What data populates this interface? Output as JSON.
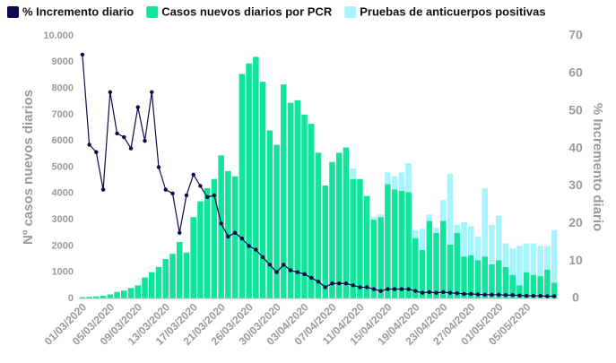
{
  "chart_data": {
    "type": "bar",
    "y_label": "Nº casos nuevos diarios",
    "y2_label": "% Incremento diario",
    "stacked": true,
    "categories": [
      "01/03/2020",
      null,
      null,
      null,
      "05/03/2020",
      null,
      null,
      null,
      "09/03/2020",
      null,
      null,
      null,
      "13/03/2020",
      null,
      null,
      null,
      "17/03/2020",
      null,
      null,
      null,
      "21/03/2020",
      null,
      null,
      null,
      "26/03/2020",
      null,
      null,
      null,
      "30/03/2020",
      null,
      null,
      null,
      "03/04/2020",
      null,
      null,
      null,
      "07/04/2020",
      null,
      null,
      null,
      "11/04/2020",
      null,
      null,
      null,
      "15/04/2020",
      null,
      null,
      null,
      "19/04/2020",
      null,
      null,
      null,
      "23/04/2020",
      null,
      null,
      null,
      "27/04/2020",
      null,
      null,
      null,
      "01/05/2020",
      null,
      null,
      null,
      "05/05/2020",
      null,
      null,
      null,
      null
    ],
    "series": [
      {
        "name": "% Incremento diario",
        "type": "line",
        "axis": "y2",
        "color": "#0c0a4d",
        "values": [
          65,
          41,
          39,
          29,
          55,
          44,
          43,
          40,
          51,
          42,
          55,
          35,
          29,
          28,
          17.5,
          27.5,
          33,
          30,
          27,
          27.5,
          20,
          16.5,
          17.5,
          16,
          14,
          13,
          11,
          9,
          7,
          9,
          7.5,
          7,
          6.5,
          5.5,
          4.5,
          3,
          4,
          4,
          4,
          3.5,
          3,
          3,
          2.5,
          2,
          2.5,
          2.5,
          2.5,
          2.5,
          2,
          1.5,
          1.7,
          1.5,
          1.7,
          1.5,
          1.4,
          1.2,
          1.2,
          1.1,
          1,
          1,
          1,
          0.9,
          0.9,
          0.8,
          0.7,
          0.7,
          0.7,
          0.6,
          0.6
        ]
      },
      {
        "name": "Casos nuevos diarios por PCR",
        "type": "bar",
        "color": "#12e49e",
        "values": [
          50,
          60,
          80,
          100,
          150,
          250,
          300,
          400,
          500,
          800,
          1000,
          1200,
          1500,
          1700,
          2150,
          1750,
          3100,
          3700,
          4200,
          4550,
          5450,
          4850,
          4650,
          8550,
          8950,
          9200,
          8250,
          6400,
          5850,
          8150,
          7450,
          7550,
          7000,
          6650,
          5550,
          4300,
          5200,
          5550,
          5750,
          4550,
          4550,
          3900,
          3000,
          3100,
          4350,
          4150,
          4100,
          4050,
          2300,
          1850,
          2950,
          2500,
          2950,
          2050,
          2500,
          1600,
          1650,
          1450,
          1600,
          1300,
          1450,
          1200,
          900,
          500,
          1000,
          900,
          850,
          1100,
          600
        ]
      },
      {
        "name": "Pruebas de anticuerpos positivas",
        "type": "bar",
        "color": "#a6f4fd",
        "values": [
          0,
          0,
          0,
          0,
          0,
          0,
          0,
          0,
          0,
          0,
          0,
          0,
          0,
          0,
          0,
          0,
          0,
          0,
          0,
          0,
          0,
          0,
          0,
          0,
          0,
          0,
          0,
          0,
          0,
          0,
          0,
          0,
          0,
          0,
          0,
          0,
          0,
          0,
          0,
          400,
          0,
          0,
          100,
          100,
          450,
          500,
          700,
          1100,
          300,
          800,
          250,
          200,
          800,
          2700,
          300,
          1300,
          1100,
          900,
          2600,
          1500,
          1700,
          900,
          1000,
          1500,
          1100,
          1200,
          1150,
          900,
          2000
        ]
      }
    ],
    "ylim": [
      0,
      10000
    ],
    "yticks": [
      0,
      1000,
      2000,
      3000,
      4000,
      5000,
      6000,
      7000,
      8000,
      9000,
      {
        "value": 10000,
        "label": "10.000"
      }
    ],
    "y2lim": [
      0,
      70
    ],
    "y2ticks": [
      0,
      10,
      20,
      30,
      40,
      50,
      60,
      70
    ]
  }
}
